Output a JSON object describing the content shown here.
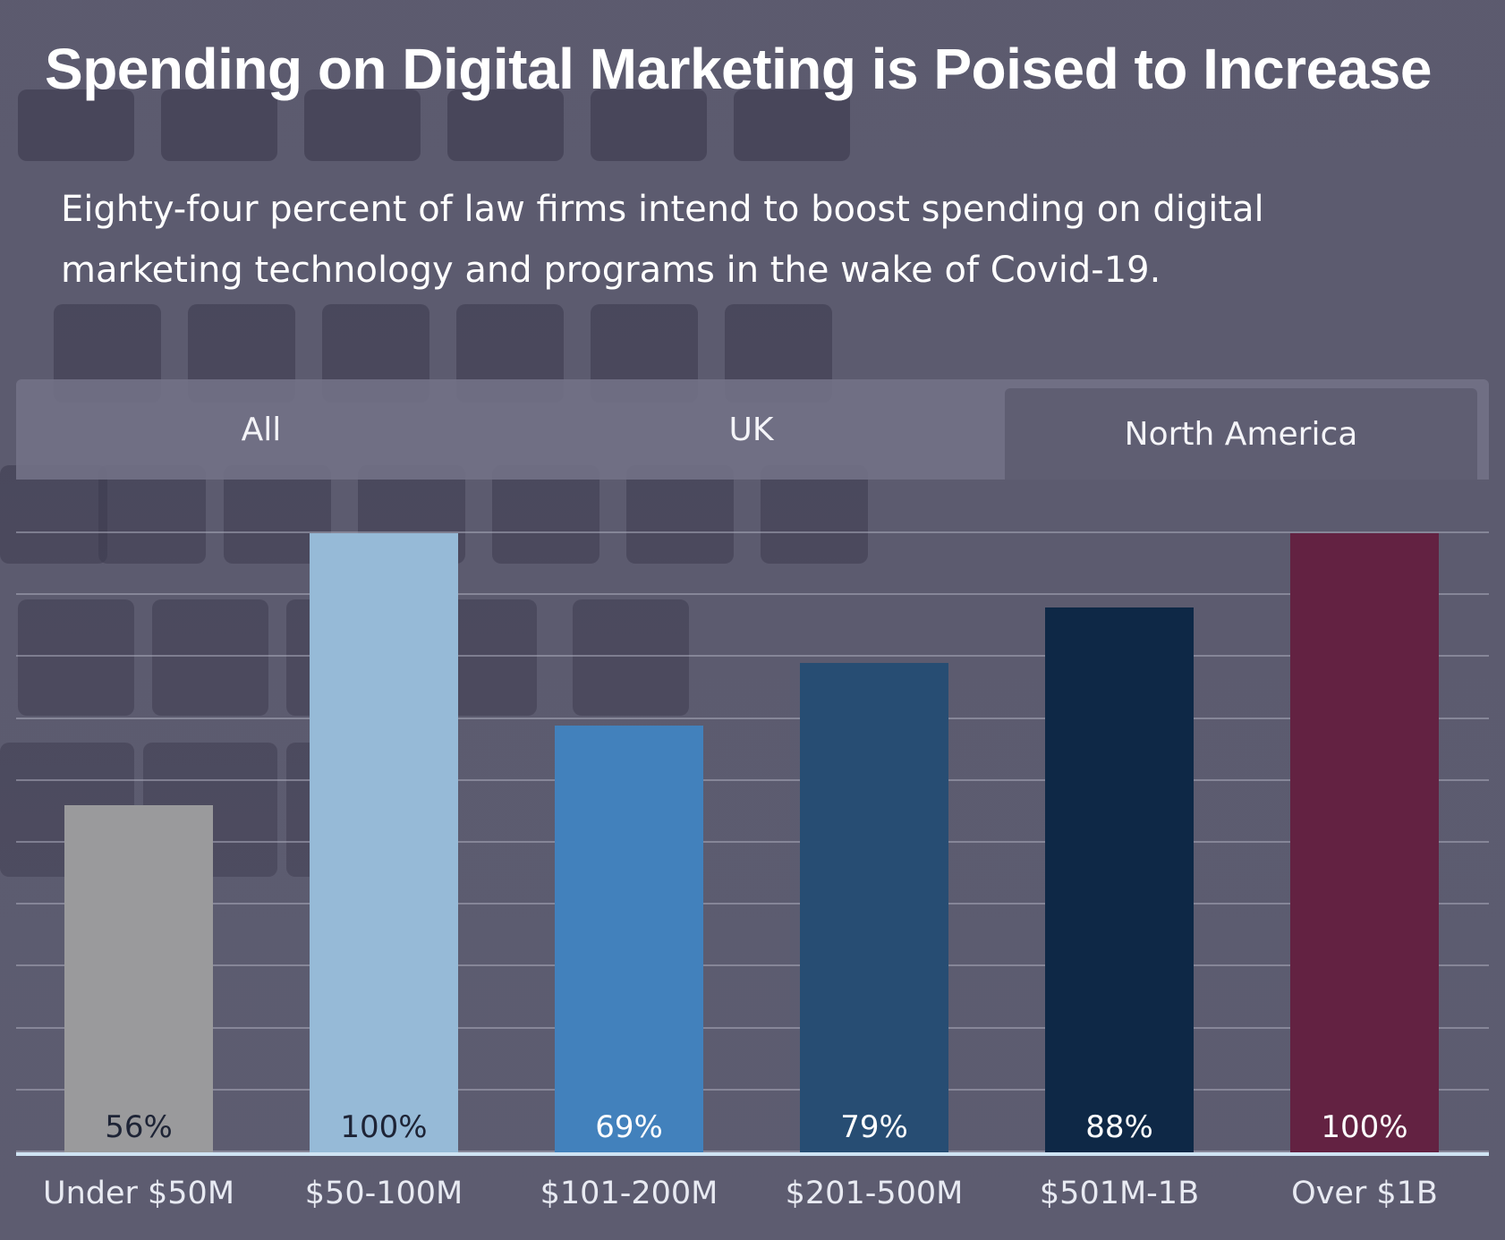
{
  "title": "Spending on Digital Marketing is Poised to Increase",
  "subtitle": "Eighty-four percent of law firms intend to boost spending on digital marketing technology and programs in the wake of Covid-19.",
  "tabs": [
    {
      "label": "All"
    },
    {
      "label": "UK"
    },
    {
      "label": "North America",
      "selected": true
    }
  ],
  "chart_data": {
    "type": "bar",
    "title": "",
    "xlabel": "",
    "ylabel": "",
    "ylim": [
      0,
      100
    ],
    "grid": true,
    "categories": [
      "Under $50M",
      "$50-100M",
      "$101-200M",
      "$201-500M",
      "$501M-1B",
      "Over $1B"
    ],
    "values": [
      56,
      100,
      69,
      79,
      88,
      100
    ],
    "data_labels": [
      "56%",
      "100%",
      "69%",
      "79%",
      "88%",
      "100%"
    ],
    "colors": [
      "#9a9a9c",
      "#96bad7",
      "#4281bc",
      "#274d73",
      "#0e2846",
      "#632242"
    ],
    "label_colors": [
      "#1e2436",
      "#1e2436",
      "#ffffff",
      "#ffffff",
      "#ffffff",
      "#ffffff"
    ]
  }
}
